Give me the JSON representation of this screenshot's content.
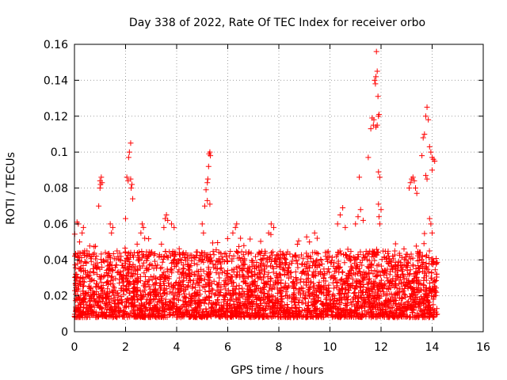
{
  "chart_data": {
    "type": "scatter",
    "title": "Day 338 of 2022, Rate Of TEC Index for receiver orbo",
    "xlabel": "GPS time / hours",
    "ylabel": "ROTI / TECUs",
    "xlim": [
      0,
      16
    ],
    "ylim": [
      0,
      0.16
    ],
    "xticks": [
      "0",
      "2",
      "4",
      "6",
      "8",
      "10",
      "12",
      "14",
      "16"
    ],
    "yticks": [
      "0",
      "0.02",
      "0.04",
      "0.06",
      "0.08",
      "0.1",
      "0.12",
      "0.14",
      "0.16"
    ],
    "grid": true,
    "marker": "+",
    "color": "#ff0000",
    "x_range_of_data": [
      0,
      14.2
    ],
    "baseline_band": [
      0.008,
      0.045
    ],
    "series": [
      {
        "points": [
          [
            0.05,
            0.032
          ],
          [
            0.1,
            0.061
          ],
          [
            0.15,
            0.06
          ],
          [
            0.2,
            0.05
          ],
          [
            0.3,
            0.055
          ],
          [
            0.35,
            0.058
          ],
          [
            0.4,
            0.045
          ],
          [
            0.95,
            0.07
          ],
          [
            1.0,
            0.084
          ],
          [
            1.02,
            0.082
          ],
          [
            1.05,
            0.086
          ],
          [
            1.08,
            0.083
          ],
          [
            1.0,
            0.08
          ],
          [
            1.4,
            0.06
          ],
          [
            1.5,
            0.058
          ],
          [
            1.45,
            0.055
          ],
          [
            2.0,
            0.063
          ],
          [
            2.05,
            0.086
          ],
          [
            2.1,
            0.084
          ],
          [
            2.12,
            0.097
          ],
          [
            2.15,
            0.1
          ],
          [
            2.2,
            0.105
          ],
          [
            2.2,
            0.085
          ],
          [
            2.25,
            0.082
          ],
          [
            2.22,
            0.08
          ],
          [
            2.28,
            0.074
          ],
          [
            2.6,
            0.055
          ],
          [
            2.65,
            0.06
          ],
          [
            2.7,
            0.058
          ],
          [
            2.75,
            0.052
          ],
          [
            3.5,
            0.058
          ],
          [
            3.55,
            0.063
          ],
          [
            3.6,
            0.065
          ],
          [
            3.65,
            0.062
          ],
          [
            3.8,
            0.06
          ],
          [
            3.9,
            0.058
          ],
          [
            5.1,
            0.07
          ],
          [
            5.15,
            0.079
          ],
          [
            5.2,
            0.083
          ],
          [
            5.22,
            0.085
          ],
          [
            5.25,
            0.092
          ],
          [
            5.27,
            0.099
          ],
          [
            5.3,
            0.1
          ],
          [
            5.32,
            0.098
          ],
          [
            5.2,
            0.073
          ],
          [
            5.3,
            0.071
          ],
          [
            5.0,
            0.06
          ],
          [
            5.05,
            0.055
          ],
          [
            6.2,
            0.055
          ],
          [
            6.3,
            0.058
          ],
          [
            6.35,
            0.06
          ],
          [
            6.5,
            0.052
          ],
          [
            7.6,
            0.055
          ],
          [
            7.7,
            0.06
          ],
          [
            7.8,
            0.058
          ],
          [
            9.2,
            0.05
          ],
          [
            9.4,
            0.055
          ],
          [
            9.5,
            0.052
          ],
          [
            10.3,
            0.06
          ],
          [
            10.4,
            0.065
          ],
          [
            10.5,
            0.069
          ],
          [
            10.6,
            0.058
          ],
          [
            11.0,
            0.06
          ],
          [
            11.1,
            0.064
          ],
          [
            11.2,
            0.068
          ],
          [
            11.3,
            0.062
          ],
          [
            11.15,
            0.086
          ],
          [
            11.5,
            0.097
          ],
          [
            11.6,
            0.113
          ],
          [
            11.65,
            0.119
          ],
          [
            11.7,
            0.115
          ],
          [
            11.72,
            0.118
          ],
          [
            11.75,
            0.14
          ],
          [
            11.78,
            0.138
          ],
          [
            11.8,
            0.142
          ],
          [
            11.82,
            0.156
          ],
          [
            11.85,
            0.145
          ],
          [
            11.88,
            0.131
          ],
          [
            11.9,
            0.12
          ],
          [
            11.92,
            0.121
          ],
          [
            11.8,
            0.114
          ],
          [
            11.85,
            0.115
          ],
          [
            11.9,
            0.089
          ],
          [
            11.95,
            0.086
          ],
          [
            11.9,
            0.071
          ],
          [
            11.92,
            0.064
          ],
          [
            11.95,
            0.06
          ],
          [
            12.0,
            0.068
          ],
          [
            13.1,
            0.08
          ],
          [
            13.15,
            0.083
          ],
          [
            13.2,
            0.085
          ],
          [
            13.25,
            0.086
          ],
          [
            13.3,
            0.084
          ],
          [
            13.35,
            0.08
          ],
          [
            13.4,
            0.077
          ],
          [
            13.6,
            0.098
          ],
          [
            13.65,
            0.108
          ],
          [
            13.7,
            0.11
          ],
          [
            13.75,
            0.12
          ],
          [
            13.8,
            0.125
          ],
          [
            13.85,
            0.118
          ],
          [
            13.9,
            0.103
          ],
          [
            13.95,
            0.1
          ],
          [
            14.0,
            0.097
          ],
          [
            14.05,
            0.096
          ],
          [
            14.1,
            0.095
          ],
          [
            13.75,
            0.087
          ],
          [
            13.8,
            0.085
          ],
          [
            14.0,
            0.09
          ],
          [
            13.9,
            0.063
          ],
          [
            13.95,
            0.06
          ],
          [
            14.0,
            0.055
          ]
        ]
      }
    ]
  }
}
